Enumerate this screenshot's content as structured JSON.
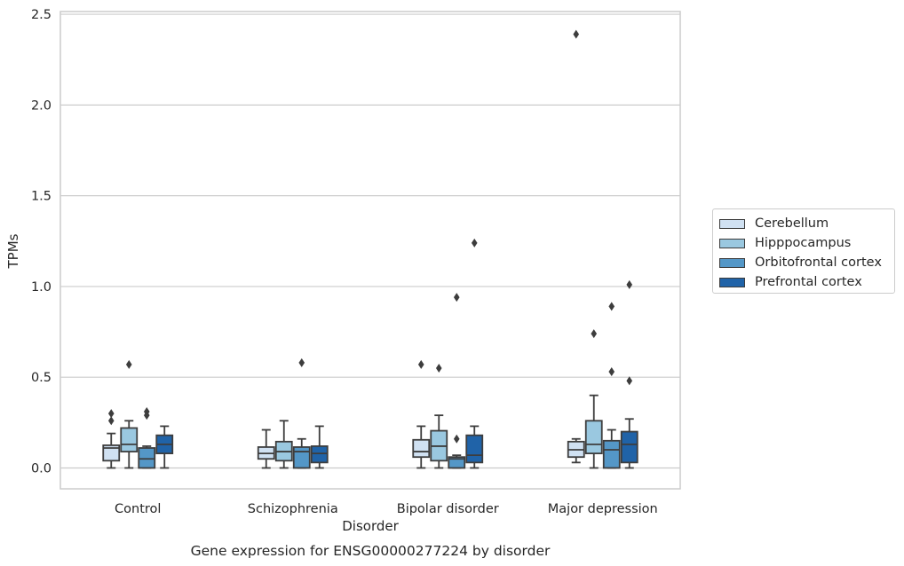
{
  "chart_data": {
    "type": "box",
    "title": "Gene expression for ENSG00000277224 by disorder",
    "xlabel": "Disorder",
    "ylabel": "TPMs",
    "ylim": [
      -0.115,
      2.515
    ],
    "yticks": [
      "0.0",
      "0.5",
      "1.0",
      "1.5",
      "2.0",
      "2.5"
    ],
    "ytick_values": [
      0,
      0.5,
      1.0,
      1.5,
      2.0,
      2.5
    ],
    "grid": true,
    "legend_position": "right",
    "categories": [
      "Control",
      "Schizophrenia",
      "Bipolar disorder",
      "Major depression"
    ],
    "series": [
      {
        "name": "Cerebellum",
        "color": "#d0e1f2",
        "boxes": [
          {
            "whislo": 0.0,
            "q1": 0.04,
            "med": 0.11,
            "q3": 0.125,
            "whishi": 0.19,
            "fliers": [
              0.26,
              0.3
            ]
          },
          {
            "whislo": 0.0,
            "q1": 0.05,
            "med": 0.08,
            "q3": 0.115,
            "whishi": 0.21,
            "fliers": []
          },
          {
            "whislo": 0.0,
            "q1": 0.06,
            "med": 0.09,
            "q3": 0.155,
            "whishi": 0.23,
            "fliers": [
              0.57
            ]
          },
          {
            "whislo": 0.03,
            "q1": 0.06,
            "med": 0.1,
            "q3": 0.145,
            "whishi": 0.16,
            "fliers": [
              2.39
            ]
          }
        ]
      },
      {
        "name": "Hipppocampus",
        "color": "#9ac8e0",
        "boxes": [
          {
            "whislo": 0.0,
            "q1": 0.09,
            "med": 0.13,
            "q3": 0.22,
            "whishi": 0.26,
            "fliers": [
              0.57
            ]
          },
          {
            "whislo": 0.0,
            "q1": 0.04,
            "med": 0.09,
            "q3": 0.145,
            "whishi": 0.26,
            "fliers": []
          },
          {
            "whislo": 0.0,
            "q1": 0.04,
            "med": 0.12,
            "q3": 0.205,
            "whishi": 0.29,
            "fliers": [
              0.55
            ]
          },
          {
            "whislo": 0.0,
            "q1": 0.08,
            "med": 0.13,
            "q3": 0.26,
            "whishi": 0.4,
            "fliers": [
              0.74
            ]
          }
        ]
      },
      {
        "name": "Orbitofrontal cortex",
        "color": "#5497c7",
        "boxes": [
          {
            "whislo": 0.0,
            "q1": 0.0,
            "med": 0.05,
            "q3": 0.11,
            "whishi": 0.12,
            "fliers": [
              0.29,
              0.31
            ]
          },
          {
            "whislo": 0.0,
            "q1": 0.0,
            "med": 0.09,
            "q3": 0.115,
            "whishi": 0.16,
            "fliers": [
              0.58
            ]
          },
          {
            "whislo": 0.0,
            "q1": 0.0,
            "med": 0.05,
            "q3": 0.06,
            "whishi": 0.07,
            "fliers": [
              0.16,
              0.94
            ]
          },
          {
            "whislo": 0.0,
            "q1": 0.0,
            "med": 0.1,
            "q3": 0.15,
            "whishi": 0.21,
            "fliers": [
              0.53,
              0.89
            ]
          }
        ]
      },
      {
        "name": "Prefrontal cortex",
        "color": "#2063a8",
        "boxes": [
          {
            "whislo": 0.0,
            "q1": 0.08,
            "med": 0.13,
            "q3": 0.18,
            "whishi": 0.23,
            "fliers": []
          },
          {
            "whislo": 0.0,
            "q1": 0.03,
            "med": 0.08,
            "q3": 0.12,
            "whishi": 0.23,
            "fliers": []
          },
          {
            "whislo": 0.0,
            "q1": 0.03,
            "med": 0.07,
            "q3": 0.18,
            "whishi": 0.23,
            "fliers": [
              1.24
            ]
          },
          {
            "whislo": 0.0,
            "q1": 0.03,
            "med": 0.13,
            "q3": 0.2,
            "whishi": 0.27,
            "fliers": [
              0.48,
              1.01
            ]
          }
        ]
      }
    ]
  }
}
